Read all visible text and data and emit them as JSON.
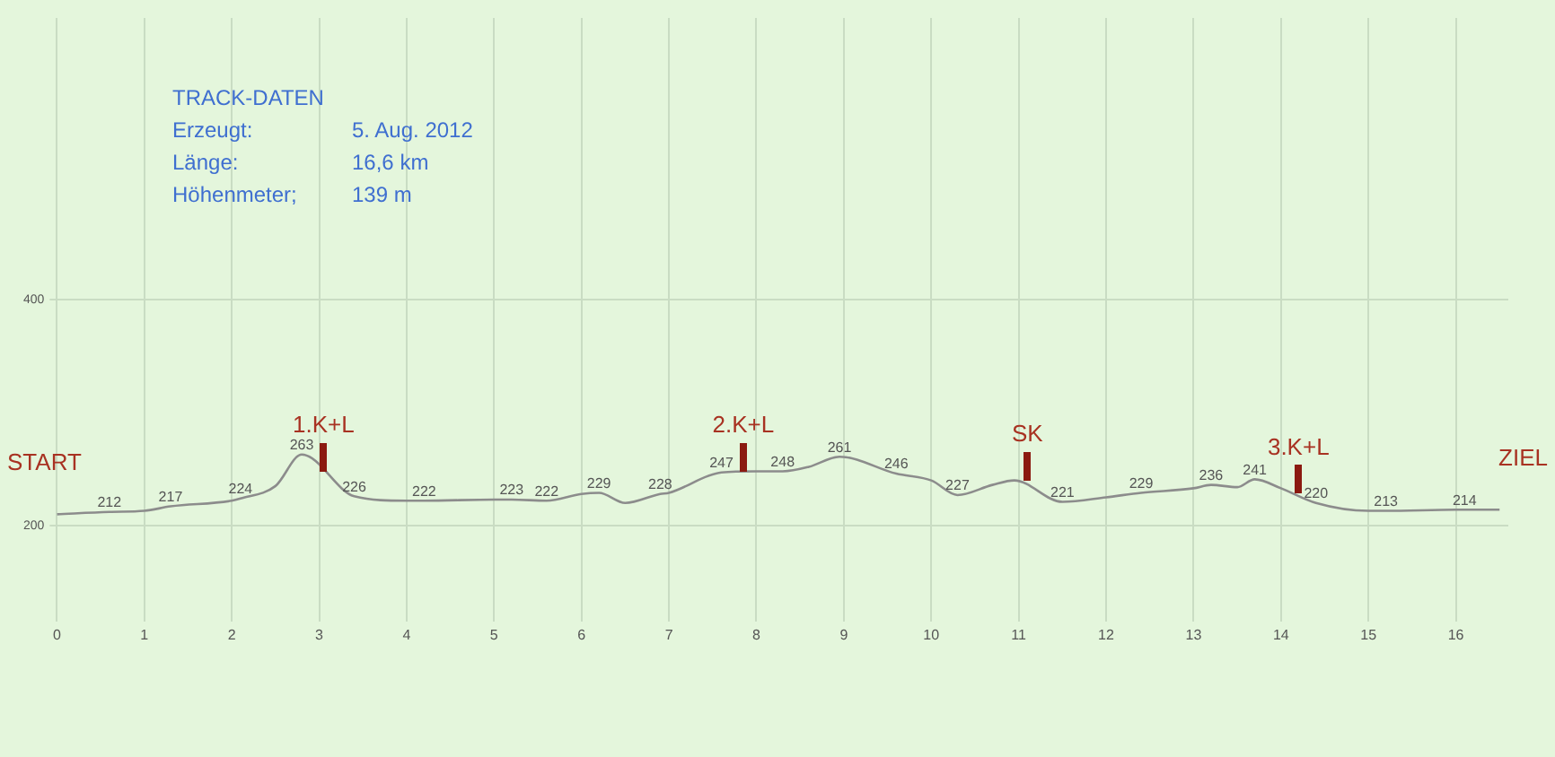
{
  "chart_data": {
    "type": "line",
    "title": "TRACK-DATEN",
    "x": [
      0,
      0.6,
      1,
      1.3,
      2,
      2.1,
      2.5,
      2.8,
      3.4,
      4,
      4.2,
      5,
      5.2,
      5.6,
      6,
      6.2,
      6.5,
      6.9,
      7,
      7.6,
      8,
      8.3,
      8.6,
      8.95,
      9.6,
      10,
      10.3,
      10.7,
      10.95,
      11.5,
      12,
      12.4,
      13,
      13.2,
      13.5,
      13.7,
      14,
      14.4,
      15,
      15.2,
      16,
      16.1,
      16.5
    ],
    "series": [
      {
        "color": "#8c8c8c",
        "values": [
          210,
          212,
          213,
          217,
          222,
          224,
          235,
          263,
          226,
          222,
          222,
          223,
          223,
          222,
          228,
          229,
          220,
          228,
          229,
          247,
          248,
          248,
          252,
          261,
          246,
          240,
          227,
          236,
          240,
          221,
          225,
          229,
          233,
          236,
          234,
          241,
          233,
          220,
          213,
          213,
          214,
          214,
          214
        ],
        "value_labels": [
          null,
          "212",
          null,
          "217",
          null,
          "224",
          null,
          "263",
          "226",
          null,
          "222",
          null,
          "223",
          "222",
          null,
          "229",
          null,
          "228",
          null,
          "247",
          null,
          "248",
          null,
          "261",
          "246",
          null,
          "227",
          null,
          null,
          "221",
          null,
          "229",
          null,
          "236",
          null,
          "241",
          null,
          "220",
          null,
          "213",
          null,
          "214",
          null
        ]
      }
    ],
    "xlim": [
      0,
      16.6
    ],
    "xticks": [
      0,
      1,
      2,
      3,
      4,
      5,
      6,
      7,
      8,
      9,
      10,
      11,
      12,
      13,
      14,
      15,
      16
    ],
    "ylim": [
      115,
      650
    ],
    "yticks": [
      200,
      400
    ],
    "grid": true,
    "marker": "none",
    "line_style": "solid",
    "annotations": [
      "START",
      "ZIEL",
      "Erzeugt:",
      "5. Aug. 2012",
      "Länge:",
      "16,6 km",
      "Höhenmeter;",
      "139 m",
      {
        "text": "1.K+L",
        "x": 3.05,
        "y": 248
      },
      {
        "text": "2.K+L",
        "x": 7.85,
        "y": 248
      },
      {
        "text": "SK",
        "x": 11.1,
        "y": 240
      },
      {
        "text": "3.K+L",
        "x": 14.2,
        "y": 228
      }
    ]
  }
}
